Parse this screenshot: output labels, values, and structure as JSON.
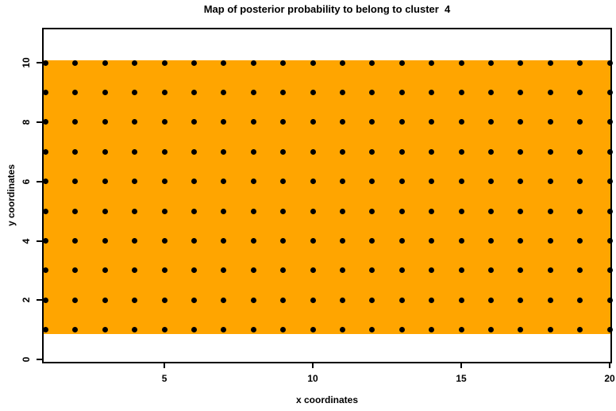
{
  "chart_data": {
    "type": "heatmap",
    "title": "Map of posterior probability to belong to cluster  4",
    "cluster_id": 4,
    "xlabel": "x coordinates",
    "ylabel": "y coordinates",
    "x_ticks": [
      5,
      10,
      15,
      20
    ],
    "y_ticks": [
      0,
      2,
      4,
      6,
      8,
      10
    ],
    "xlim": [
      0.88,
      20.08
    ],
    "ylim": [
      -0.13,
      11.18
    ],
    "grid_on": false,
    "legend": "none",
    "background_color": "#FFFFFF",
    "axis_color": "#000000",
    "region": {
      "x_range": [
        0.88,
        20.08
      ],
      "y_range": [
        0.85,
        10.08
      ],
      "fill_color": "#FFA500"
    },
    "grid_points": {
      "x_values": [
        1,
        2,
        3,
        4,
        5,
        6,
        7,
        8,
        9,
        10,
        11,
        12,
        13,
        14,
        15,
        16,
        17,
        18,
        19,
        20
      ],
      "y_values": [
        1,
        2,
        3,
        4,
        5,
        6,
        7,
        8,
        9,
        10
      ],
      "marker": "filled-circle",
      "marker_color": "#000000",
      "marker_size_px": 7
    }
  }
}
